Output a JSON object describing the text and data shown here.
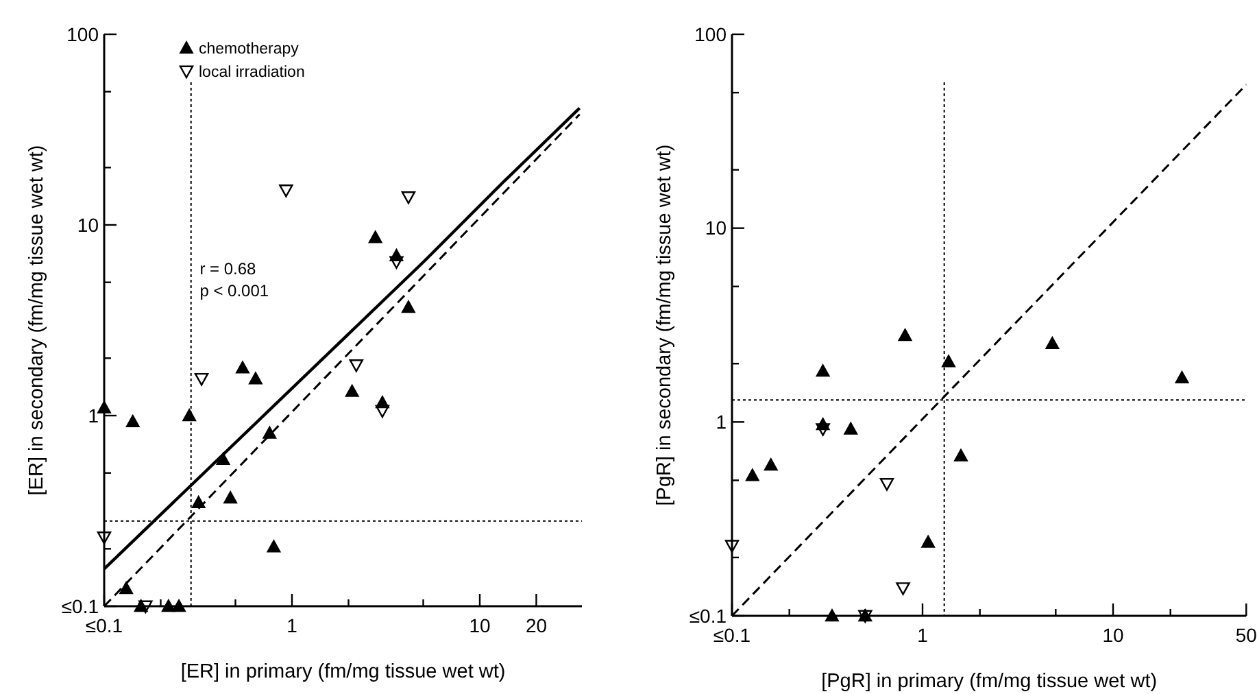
{
  "chart_data": [
    {
      "type": "scatter",
      "xlabel": "[ER] in primary (fm/mg tissue wet wt)",
      "ylabel": "[ER] in secondary (fm/mg tissue wet wt)",
      "log": "xy",
      "legend": "top",
      "grid": false,
      "xlim": [
        0.1,
        35
      ],
      "ylim": [
        0.1,
        100
      ],
      "xticks": [
        {
          "value": 0.1,
          "label": "≤0.1"
        },
        {
          "value": 0.2,
          "label": null
        },
        {
          "value": 0.5,
          "label": null
        },
        1,
        {
          "value": 2,
          "label": null
        },
        {
          "value": 5,
          "label": null
        },
        10,
        20
      ],
      "yticks": [
        {
          "value": 0.1,
          "label": "≤0.1"
        },
        {
          "value": 0.2,
          "label": null
        },
        {
          "value": 0.5,
          "label": null
        },
        1,
        {
          "value": 2,
          "label": null
        },
        {
          "value": 5,
          "label": null
        },
        10,
        {
          "value": 20,
          "label": null
        },
        {
          "value": 50,
          "label": null
        },
        100
      ],
      "annotations": [
        "r = 0.68",
        "p < 0.001"
      ],
      "ref_lines": [
        {
          "axis": "x",
          "value": 0.29,
          "line_style": "dotted"
        },
        {
          "axis": "y",
          "value": 0.28,
          "line_style": "dotted"
        }
      ],
      "series": [
        {
          "name": "chemotherapy",
          "color": "#000000",
          "marker": "triangle",
          "x": [
            0.1,
            0.142,
            0.131,
            0.157,
            0.22,
            0.25,
            0.284,
            0.318,
            0.43,
            0.47,
            0.546,
            0.64,
            0.76,
            0.8,
            2.09,
            3.03,
            2.78,
            3.6,
            4.17
          ],
          "values": [
            1.1,
            0.93,
            0.124,
            0.1,
            0.1,
            0.1,
            1.0,
            0.35,
            0.59,
            0.37,
            1.78,
            1.56,
            0.81,
            0.205,
            1.34,
            1.17,
            8.6,
            6.9,
            3.7
          ]
        },
        {
          "name": "local irradiation",
          "color": "#000000",
          "marker": "triangle-down",
          "x": [
            0.1,
            0.166,
            0.33,
            2.2,
            3.03,
            3.6,
            0.93,
            4.17
          ],
          "values": [
            0.23,
            0.1,
            1.56,
            1.84,
            1.06,
            6.4,
            15.2,
            14.0
          ]
        },
        {
          "type": "line",
          "color": "#000000",
          "line_style": "solid",
          "marker": "none",
          "x": [
            0.1,
            5.1,
            13.2,
            34
          ],
          "values": [
            0.157,
            6.5,
            16.6,
            41
          ]
        },
        {
          "type": "line",
          "color": "#000000",
          "line_style": "dashed",
          "marker": "none",
          "x": [
            0.1,
            34
          ],
          "values": [
            0.1,
            38
          ]
        }
      ]
    },
    {
      "type": "scatter",
      "xlabel": "[PgR] in primary (fm/mg tissue wet wt)",
      "ylabel": "[PgR] in secondary (fm/mg tissue wet wt)",
      "log": "xy",
      "legend": false,
      "grid": false,
      "xlim": [
        0.1,
        50
      ],
      "ylim": [
        0.1,
        100
      ],
      "xticks": [
        {
          "value": 0.1,
          "label": "≤0.1"
        },
        {
          "value": 0.2,
          "label": null
        },
        {
          "value": 0.5,
          "label": null
        },
        1,
        {
          "value": 2,
          "label": null
        },
        {
          "value": 5,
          "label": null
        },
        10,
        {
          "value": 20,
          "label": null
        },
        50
      ],
      "yticks": [
        {
          "value": 0.1,
          "label": "≤0.1"
        },
        {
          "value": 0.2,
          "label": null
        },
        {
          "value": 0.5,
          "label": null
        },
        1,
        {
          "value": 2,
          "label": null
        },
        {
          "value": 5,
          "label": null
        },
        10,
        {
          "value": 20,
          "label": null
        },
        {
          "value": 50,
          "label": null
        },
        100
      ],
      "ref_lines": [
        {
          "axis": "x",
          "value": 1.3,
          "line_style": "dotted"
        },
        {
          "axis": "y",
          "value": 1.3,
          "line_style": "dotted"
        }
      ],
      "series": [
        {
          "color": "#000000",
          "marker": "triangle",
          "x": [
            0.81,
            1.37,
            4.8,
            23,
            0.3,
            0.3,
            0.42,
            0.128,
            0.16,
            1.59,
            1.07,
            0.335,
            0.5
          ],
          "values": [
            2.8,
            2.05,
            2.54,
            1.69,
            1.83,
            0.97,
            0.92,
            0.53,
            0.6,
            0.67,
            0.24,
            0.1,
            0.1
          ]
        },
        {
          "color": "#000000",
          "marker": "triangle-down",
          "x": [
            0.3,
            0.65,
            0.79,
            0.1,
            0.5
          ],
          "values": [
            0.92,
            0.48,
            0.139,
            0.23,
            0.1
          ]
        },
        {
          "type": "line",
          "color": "#000000",
          "line_style": "dashed",
          "marker": "none",
          "x": [
            0.1,
            50
          ],
          "values": [
            0.1,
            55
          ]
        }
      ]
    }
  ]
}
